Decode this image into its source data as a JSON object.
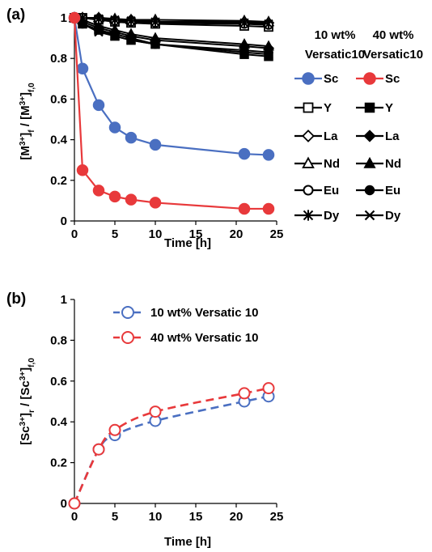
{
  "chart_data": [
    {
      "panel": "(a)",
      "type": "line",
      "xlabel": "Time [h]",
      "ylabel": "[M3+]f / [M3+]f,0",
      "ylabel_parts": {
        "lb": "[M",
        "sup": "3+",
        "rb": "]",
        "sub": "f",
        "slash": " / [M",
        "sup2": "3+",
        "rb2": "]",
        "sub2": "f,0"
      },
      "xlim": [
        0,
        25
      ],
      "ylim": [
        0,
        1
      ],
      "xticks": [
        "0",
        "5",
        "10",
        "15",
        "20",
        "25"
      ],
      "yticks": [
        "0",
        "0.2",
        "0.4",
        "0.6",
        "0.8",
        "1"
      ],
      "grid": false,
      "legend_position": "right",
      "legend_headers": [
        [
          "10 wt%",
          "Versatic10"
        ],
        [
          "40 wt%",
          "Versatic10"
        ]
      ],
      "series": [
        {
          "name": "Sc",
          "group": "10 wt%",
          "color": "#4a6fc1",
          "marker": "circle-filled",
          "x": [
            0,
            1,
            3,
            5,
            7,
            10,
            21,
            24
          ],
          "y": [
            1.0,
            0.75,
            0.57,
            0.46,
            0.41,
            0.375,
            0.33,
            0.325
          ]
        },
        {
          "name": "Sc",
          "group": "40 wt%",
          "color": "#e8393b",
          "marker": "circle-filled",
          "x": [
            0,
            1,
            3,
            5,
            7,
            10,
            21,
            24
          ],
          "y": [
            1.0,
            0.25,
            0.15,
            0.12,
            0.105,
            0.09,
            0.06,
            0.06
          ]
        },
        {
          "name": "Y",
          "group": "10 wt%",
          "color": "#000000",
          "marker": "square-open",
          "x": [
            0,
            1,
            3,
            5,
            7,
            10,
            21,
            24
          ],
          "y": [
            1.0,
            1.0,
            0.99,
            0.98,
            0.975,
            0.97,
            0.96,
            0.955
          ]
        },
        {
          "name": "Y",
          "group": "40 wt%",
          "color": "#000000",
          "marker": "square-filled",
          "x": [
            0,
            1,
            3,
            5,
            7,
            10,
            21,
            24
          ],
          "y": [
            1.0,
            0.97,
            0.94,
            0.91,
            0.89,
            0.87,
            0.82,
            0.81
          ]
        },
        {
          "name": "La",
          "group": "10 wt%",
          "color": "#000000",
          "marker": "diamond-open",
          "x": [
            0,
            1,
            3,
            5,
            7,
            10,
            21,
            24
          ],
          "y": [
            1.0,
            1.0,
            1.0,
            0.99,
            0.99,
            0.98,
            0.98,
            0.975
          ]
        },
        {
          "name": "La",
          "group": "40 wt%",
          "color": "#000000",
          "marker": "diamond-filled",
          "x": [
            0,
            1,
            3,
            5,
            7,
            10,
            21,
            24
          ],
          "y": [
            1.0,
            0.98,
            0.95,
            0.93,
            0.91,
            0.89,
            0.86,
            0.85
          ]
        },
        {
          "name": "Nd",
          "group": "10 wt%",
          "color": "#000000",
          "marker": "triangle-open",
          "x": [
            0,
            1,
            3,
            5,
            7,
            10,
            21,
            24
          ],
          "y": [
            1.0,
            1.0,
            1.0,
            0.995,
            0.99,
            0.99,
            0.985,
            0.98
          ]
        },
        {
          "name": "Nd",
          "group": "40 wt%",
          "color": "#000000",
          "marker": "triangle-filled",
          "x": [
            0,
            1,
            3,
            5,
            7,
            10,
            21,
            24
          ],
          "y": [
            1.0,
            0.99,
            0.96,
            0.94,
            0.92,
            0.9,
            0.87,
            0.86
          ]
        },
        {
          "name": "Eu",
          "group": "10 wt%",
          "color": "#000000",
          "marker": "circle-open",
          "x": [
            0,
            1,
            3,
            5,
            7,
            10,
            21,
            24
          ],
          "y": [
            1.0,
            1.0,
            0.99,
            0.985,
            0.98,
            0.975,
            0.97,
            0.965
          ]
        },
        {
          "name": "Eu",
          "group": "40 wt%",
          "color": "#000000",
          "marker": "circle-filled",
          "x": [
            0,
            1,
            3,
            5,
            7,
            10,
            21,
            24
          ],
          "y": [
            1.0,
            0.97,
            0.94,
            0.92,
            0.9,
            0.87,
            0.84,
            0.83
          ]
        },
        {
          "name": "Dy",
          "group": "10 wt%",
          "color": "#000000",
          "marker": "asterisk",
          "x": [
            0,
            1,
            3,
            5,
            7,
            10,
            21,
            24
          ],
          "y": [
            1.0,
            1.0,
            0.995,
            0.99,
            0.985,
            0.98,
            0.975,
            0.97
          ]
        },
        {
          "name": "Dy",
          "group": "40 wt%",
          "color": "#000000",
          "marker": "cross",
          "x": [
            0,
            1,
            3,
            5,
            7,
            10,
            21,
            24
          ],
          "y": [
            1.0,
            0.97,
            0.93,
            0.91,
            0.89,
            0.87,
            0.83,
            0.82
          ]
        }
      ]
    },
    {
      "panel": "(b)",
      "type": "line",
      "xlabel": "Time [h]",
      "ylabel": "[Sc3+]r / [Sc3+]f,0",
      "ylabel_parts": {
        "lb": "[Sc",
        "sup": "3+",
        "rb": "]",
        "sub": "r",
        "slash": " / [Sc",
        "sup2": "3+",
        "rb2": "]",
        "sub2": "f,0"
      },
      "xlim": [
        0,
        25
      ],
      "ylim": [
        0,
        1
      ],
      "xticks": [
        "0",
        "5",
        "10",
        "15",
        "20",
        "25"
      ],
      "yticks": [
        "0",
        "0.2",
        "0.4",
        "0.6",
        "0.8",
        "1"
      ],
      "grid": false,
      "legend_position": "top-right",
      "series": [
        {
          "name": "10 wt% Versatic 10",
          "color": "#4a6fc1",
          "marker": "circle-open",
          "line": "dashed",
          "x": [
            0,
            3,
            5,
            10,
            21,
            24
          ],
          "y": [
            0,
            0.265,
            0.335,
            0.405,
            0.5,
            0.525
          ]
        },
        {
          "name": "40 wt% Versatic 10",
          "color": "#e8393b",
          "marker": "circle-open",
          "line": "dashed",
          "x": [
            0,
            3,
            5,
            10,
            21,
            24
          ],
          "y": [
            0,
            0.265,
            0.36,
            0.45,
            0.54,
            0.565
          ]
        }
      ]
    }
  ]
}
